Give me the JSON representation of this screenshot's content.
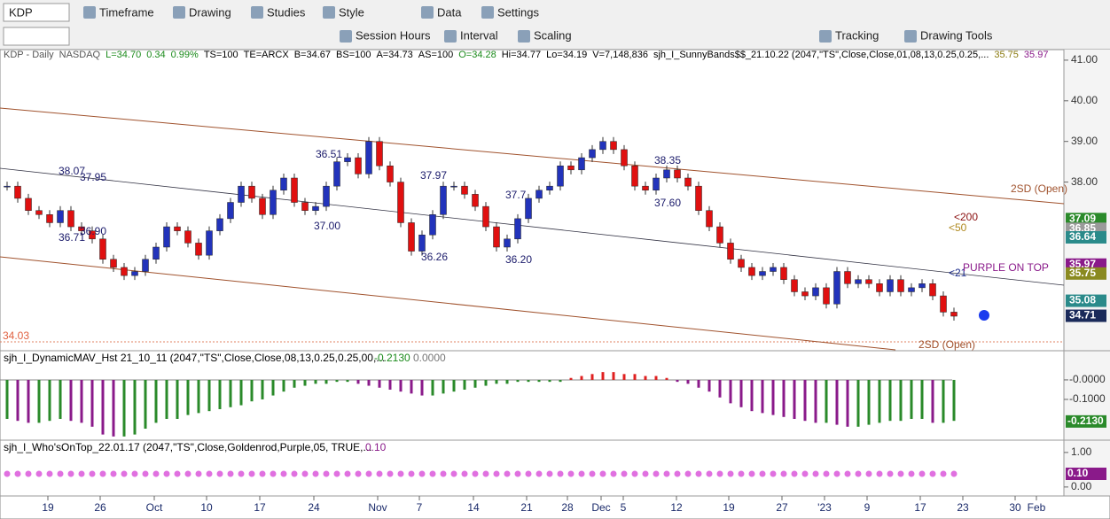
{
  "toolbar": {
    "symbol": "KDP",
    "row1": [
      "Timeframe",
      "Drawing",
      "Studies",
      "Style",
      "Data",
      "Settings"
    ],
    "row2": [
      "Session Hours",
      "Interval",
      "Scaling",
      "Tracking",
      "Drawing Tools"
    ]
  },
  "price_panel": {
    "header": [
      "KDP - Daily",
      "NASDAQ",
      "L=34.70",
      "0.34",
      "0.99%",
      "TS=100",
      "TE=ARCX",
      "B=34.67",
      "BS=100",
      "A=34.73",
      "AS=100",
      "O=34.28",
      "Hi=34.77",
      "Lo=34.19",
      "V=7,148,836",
      "sjh_I_SunnyBands$$_21.10.22 (2047,\"TS\",Close,Close,01,08,13,0.25,0.25,...",
      "35.75",
      "35.97"
    ],
    "header_colors": [
      "#555",
      "#555",
      "#1a8a1a",
      "#1a8a1a",
      "#1a8a1a",
      "#000",
      "#000",
      "#000",
      "#000",
      "#000",
      "#000",
      "#1a8a1a",
      "#000",
      "#000",
      "#000",
      "#000",
      "#8a7a10",
      "#8a1a8a"
    ],
    "ylim": [
      33.85,
      41.26
    ],
    "yticks": [
      {
        "value": 41,
        "label": "41.00"
      },
      {
        "value": 40,
        "label": "40.00"
      },
      {
        "value": 39,
        "label": "39.00"
      },
      {
        "value": 38,
        "label": "38.00"
      }
    ],
    "price_tags": [
      {
        "value": 37.09,
        "label": "37.09",
        "color": "#2a8a2a"
      },
      {
        "value": 36.85,
        "label": "36.85",
        "color": "#9a9a9a"
      },
      {
        "value": 36.64,
        "label": "36.64",
        "color": "#2a8a8a"
      },
      {
        "value": 35.97,
        "label": "35.97",
        "color": "#8a1a8a"
      },
      {
        "value": 35.75,
        "label": "35.75",
        "color": "#8a8a20"
      },
      {
        "value": 35.08,
        "label": "35.08",
        "color": "#2a8a8a"
      },
      {
        "value": 34.71,
        "label": "34.71",
        "color": "#1a2a5a"
      }
    ],
    "left_label": "34.03",
    "up_color": "#2233bb",
    "down_color": "#e01010",
    "closes": [
      37.9,
      37.6,
      37.3,
      37.2,
      37.0,
      37.3,
      36.9,
      36.8,
      36.6,
      36.1,
      35.9,
      35.7,
      35.8,
      36.1,
      36.4,
      36.9,
      36.8,
      36.5,
      36.2,
      36.8,
      37.1,
      37.5,
      37.9,
      37.6,
      37.2,
      37.8,
      38.1,
      37.5,
      37.3,
      37.4,
      37.9,
      38.5,
      38.6,
      38.2,
      39.0,
      38.4,
      38.0,
      37.0,
      36.3,
      36.7,
      37.2,
      37.9,
      37.9,
      37.7,
      37.4,
      36.9,
      36.4,
      36.6,
      37.1,
      37.6,
      37.8,
      37.9,
      38.4,
      38.3,
      38.6,
      38.8,
      39.0,
      38.8,
      38.4,
      37.9,
      37.8,
      38.1,
      38.3,
      38.1,
      37.9,
      37.3,
      36.9,
      36.5,
      36.1,
      35.9,
      35.7,
      35.8,
      35.9,
      35.6,
      35.3,
      35.2,
      35.4,
      35.0,
      35.8,
      35.5,
      35.6,
      35.5,
      35.3,
      35.6,
      35.3,
      35.4,
      35.5,
      35.2,
      34.8,
      34.7
    ],
    "price_annotations": [
      "38.07",
      "37.95",
      "36.90",
      "36.71",
      "36.51",
      "37.00",
      "37.97",
      "36.26",
      "37.7",
      "36.20",
      "38.35",
      "37.60"
    ],
    "annotations": [
      "2SD (Open)",
      "<200",
      "<50",
      "<21",
      "PURPLE ON TOP",
      "2SD (Open)"
    ]
  },
  "hist_panel": {
    "title": "sjh_I_DynamicMAV_Hst 21_10_11 (2047,\"TS\",Close,Close,08,13,0.25,0.25,00,...",
    "last": "-0.2130",
    "second": "0.0000",
    "ylim": [
      -0.309,
      0.145
    ],
    "yticks": [
      {
        "value": 0,
        "label": "-0.0000"
      },
      {
        "value": -0.1,
        "label": "-0.1000"
      }
    ],
    "tag": {
      "value": -0.213,
      "label": "-0.2130",
      "color": "#2a8a2a"
    },
    "colors": {
      "falling": "#8a1a8a",
      "rising": "#2a8a2a",
      "positive": "#e02020"
    },
    "values": [
      -0.2,
      -0.21,
      -0.22,
      -0.22,
      -0.21,
      -0.2,
      -0.21,
      -0.22,
      -0.24,
      -0.28,
      -0.29,
      -0.29,
      -0.28,
      -0.25,
      -0.22,
      -0.2,
      -0.2,
      -0.18,
      -0.17,
      -0.16,
      -0.15,
      -0.14,
      -0.13,
      -0.11,
      -0.1,
      -0.08,
      -0.06,
      -0.04,
      -0.03,
      -0.02,
      -0.02,
      -0.01,
      -0.01,
      -0.02,
      -0.03,
      -0.04,
      -0.05,
      -0.06,
      -0.07,
      -0.08,
      -0.08,
      -0.07,
      -0.06,
      -0.05,
      -0.04,
      -0.03,
      -0.02,
      -0.02,
      -0.01,
      -0.01,
      -0.01,
      -0.01,
      -0.01,
      0.01,
      0.02,
      0.03,
      0.04,
      0.04,
      0.03,
      0.03,
      0.02,
      0.02,
      0.01,
      -0.01,
      -0.02,
      -0.04,
      -0.06,
      -0.09,
      -0.12,
      -0.14,
      -0.16,
      -0.17,
      -0.18,
      -0.19,
      -0.2,
      -0.21,
      -0.22,
      -0.22,
      -0.23,
      -0.24,
      -0.24,
      -0.23,
      -0.22,
      -0.21,
      -0.21,
      -0.2,
      -0.2,
      -0.22,
      -0.22,
      -0.21
    ]
  },
  "who_panel": {
    "title": "sjh_I_Who'sOnTop_22.01.17 (2047,\"TS\",Close,Goldenrod,Purple,05, TRUE,...",
    "last": "0.10",
    "ylim": [
      -0.26,
      1.33
    ],
    "yticks": [
      {
        "value": 1,
        "label": "1.00"
      },
      {
        "value": 0,
        "label": "0.00"
      }
    ],
    "tag": {
      "label": "0.10",
      "color": "#8a1a8a"
    },
    "dot_color": "#e070e0"
  },
  "x_labels": [
    "19",
    "26",
    "Oct",
    "10",
    "17",
    "24",
    "Nov",
    "7",
    "14",
    "21",
    "28",
    "Dec",
    "5",
    "12",
    "19",
    "27",
    "'23",
    "9",
    "17",
    "23",
    "30",
    "Feb"
  ]
}
